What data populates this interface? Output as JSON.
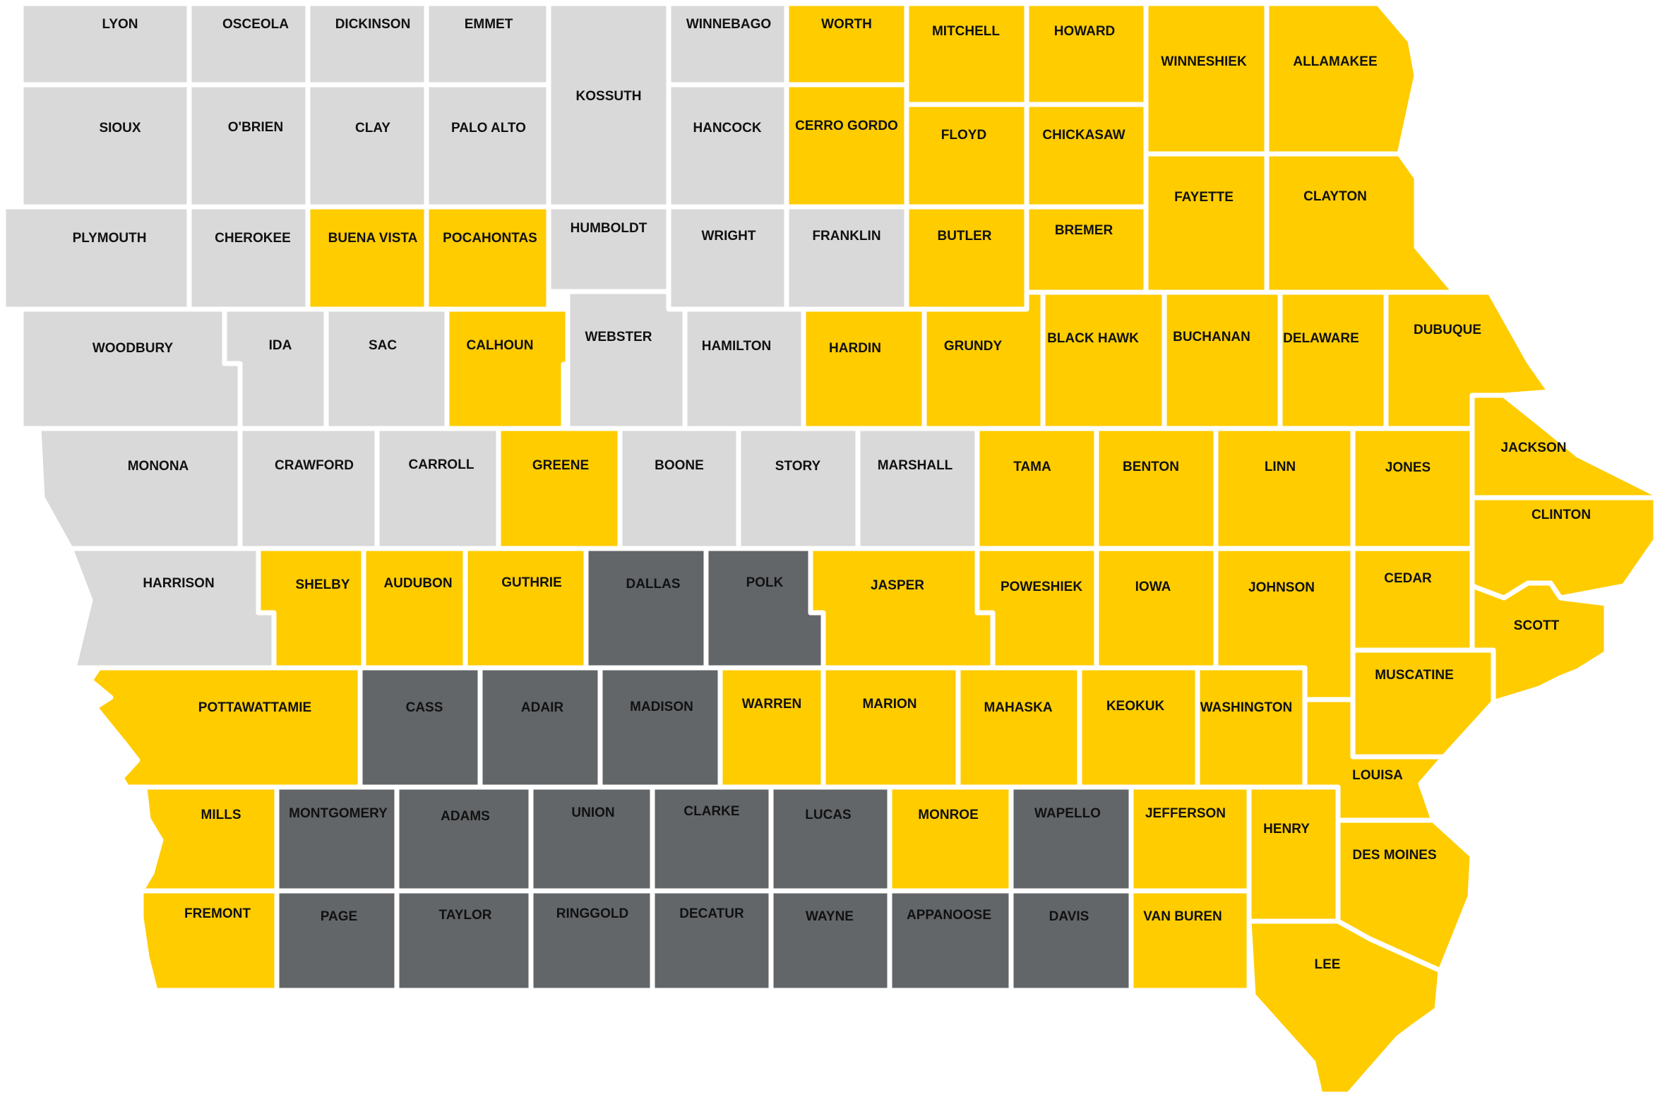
{
  "legend_colors": {
    "light_gray": "#d9d9d9",
    "yellow": "#ffcc00",
    "dark_gray": "#636669"
  },
  "counties": [
    {
      "name": "LYON",
      "shade": "light_gray"
    },
    {
      "name": "OSCEOLA",
      "shade": "light_gray"
    },
    {
      "name": "DICKINSON",
      "shade": "light_gray"
    },
    {
      "name": "EMMET",
      "shade": "light_gray"
    },
    {
      "name": "KOSSUTH",
      "shade": "light_gray"
    },
    {
      "name": "WINNEBAGO",
      "shade": "light_gray"
    },
    {
      "name": "WORTH",
      "shade": "yellow"
    },
    {
      "name": "MITCHELL",
      "shade": "yellow"
    },
    {
      "name": "HOWARD",
      "shade": "yellow"
    },
    {
      "name": "WINNESHIEK",
      "shade": "yellow"
    },
    {
      "name": "ALLAMAKEE",
      "shade": "yellow"
    },
    {
      "name": "SIOUX",
      "shade": "light_gray"
    },
    {
      "name": "O'BRIEN",
      "shade": "light_gray"
    },
    {
      "name": "CLAY",
      "shade": "light_gray"
    },
    {
      "name": "PALO ALTO",
      "shade": "light_gray"
    },
    {
      "name": "HANCOCK",
      "shade": "light_gray"
    },
    {
      "name": "CERRO GORDO",
      "shade": "yellow"
    },
    {
      "name": "FLOYD",
      "shade": "yellow"
    },
    {
      "name": "CHICKASAW",
      "shade": "yellow"
    },
    {
      "name": "FAYETTE",
      "shade": "yellow"
    },
    {
      "name": "CLAYTON",
      "shade": "yellow"
    },
    {
      "name": "PLYMOUTH",
      "shade": "light_gray"
    },
    {
      "name": "CHEROKEE",
      "shade": "light_gray"
    },
    {
      "name": "BUENA VISTA",
      "shade": "yellow"
    },
    {
      "name": "POCAHONTAS",
      "shade": "yellow"
    },
    {
      "name": "HUMBOLDT",
      "shade": "light_gray"
    },
    {
      "name": "WRIGHT",
      "shade": "light_gray"
    },
    {
      "name": "FRANKLIN",
      "shade": "light_gray"
    },
    {
      "name": "BUTLER",
      "shade": "yellow"
    },
    {
      "name": "BREMER",
      "shade": "yellow"
    },
    {
      "name": "WOODBURY",
      "shade": "light_gray"
    },
    {
      "name": "IDA",
      "shade": "light_gray"
    },
    {
      "name": "SAC",
      "shade": "light_gray"
    },
    {
      "name": "CALHOUN",
      "shade": "yellow"
    },
    {
      "name": "WEBSTER",
      "shade": "light_gray"
    },
    {
      "name": "HAMILTON",
      "shade": "light_gray"
    },
    {
      "name": "HARDIN",
      "shade": "yellow"
    },
    {
      "name": "GRUNDY",
      "shade": "yellow"
    },
    {
      "name": "BLACK HAWK",
      "shade": "yellow"
    },
    {
      "name": "BUCHANAN",
      "shade": "yellow"
    },
    {
      "name": "DELAWARE",
      "shade": "yellow"
    },
    {
      "name": "DUBUQUE",
      "shade": "yellow"
    },
    {
      "name": "MONONA",
      "shade": "light_gray"
    },
    {
      "name": "CRAWFORD",
      "shade": "light_gray"
    },
    {
      "name": "CARROLL",
      "shade": "light_gray"
    },
    {
      "name": "GREENE",
      "shade": "yellow"
    },
    {
      "name": "BOONE",
      "shade": "light_gray"
    },
    {
      "name": "STORY",
      "shade": "light_gray"
    },
    {
      "name": "MARSHALL",
      "shade": "light_gray"
    },
    {
      "name": "TAMA",
      "shade": "yellow"
    },
    {
      "name": "BENTON",
      "shade": "yellow"
    },
    {
      "name": "LINN",
      "shade": "yellow"
    },
    {
      "name": "JONES",
      "shade": "yellow"
    },
    {
      "name": "JACKSON",
      "shade": "yellow"
    },
    {
      "name": "CLINTON",
      "shade": "yellow"
    },
    {
      "name": "HARRISON",
      "shade": "light_gray"
    },
    {
      "name": "SHELBY",
      "shade": "yellow"
    },
    {
      "name": "AUDUBON",
      "shade": "yellow"
    },
    {
      "name": "GUTHRIE",
      "shade": "yellow"
    },
    {
      "name": "DALLAS",
      "shade": "dark_gray"
    },
    {
      "name": "POLK",
      "shade": "dark_gray"
    },
    {
      "name": "JASPER",
      "shade": "yellow"
    },
    {
      "name": "POWESHIEK",
      "shade": "yellow"
    },
    {
      "name": "IOWA",
      "shade": "yellow"
    },
    {
      "name": "JOHNSON",
      "shade": "yellow"
    },
    {
      "name": "CEDAR",
      "shade": "yellow"
    },
    {
      "name": "SCOTT",
      "shade": "yellow"
    },
    {
      "name": "POTTAWATTAMIE",
      "shade": "yellow"
    },
    {
      "name": "CASS",
      "shade": "dark_gray"
    },
    {
      "name": "ADAIR",
      "shade": "dark_gray"
    },
    {
      "name": "MADISON",
      "shade": "dark_gray"
    },
    {
      "name": "WARREN",
      "shade": "yellow"
    },
    {
      "name": "MARION",
      "shade": "yellow"
    },
    {
      "name": "MAHASKA",
      "shade": "yellow"
    },
    {
      "name": "KEOKUK",
      "shade": "yellow"
    },
    {
      "name": "WASHINGTON",
      "shade": "yellow"
    },
    {
      "name": "MUSCATINE",
      "shade": "yellow"
    },
    {
      "name": "LOUISA",
      "shade": "yellow"
    },
    {
      "name": "MILLS",
      "shade": "yellow"
    },
    {
      "name": "MONTGOMERY",
      "shade": "dark_gray"
    },
    {
      "name": "ADAMS",
      "shade": "dark_gray"
    },
    {
      "name": "UNION",
      "shade": "dark_gray"
    },
    {
      "name": "CLARKE",
      "shade": "dark_gray"
    },
    {
      "name": "LUCAS",
      "shade": "dark_gray"
    },
    {
      "name": "MONROE",
      "shade": "yellow"
    },
    {
      "name": "WAPELLO",
      "shade": "dark_gray"
    },
    {
      "name": "JEFFERSON",
      "shade": "yellow"
    },
    {
      "name": "HENRY",
      "shade": "yellow"
    },
    {
      "name": "DES MOINES",
      "shade": "yellow"
    },
    {
      "name": "FREMONT",
      "shade": "yellow"
    },
    {
      "name": "PAGE",
      "shade": "dark_gray"
    },
    {
      "name": "TAYLOR",
      "shade": "dark_gray"
    },
    {
      "name": "RINGGOLD",
      "shade": "dark_gray"
    },
    {
      "name": "DECATUR",
      "shade": "dark_gray"
    },
    {
      "name": "WAYNE",
      "shade": "dark_gray"
    },
    {
      "name": "APPANOOSE",
      "shade": "dark_gray"
    },
    {
      "name": "DAVIS",
      "shade": "dark_gray"
    },
    {
      "name": "VAN BUREN",
      "shade": "yellow"
    },
    {
      "name": "LEE",
      "shade": "yellow"
    }
  ]
}
